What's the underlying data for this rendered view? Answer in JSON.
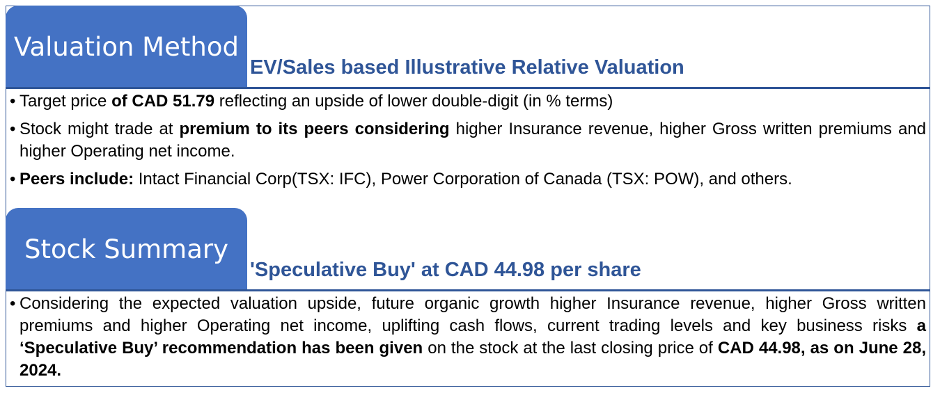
{
  "valuation": {
    "tab_title": "Valuation Method",
    "subtitle": "EV/Sales based Illustrative Relative Valuation",
    "bullets": [
      {
        "parts": [
          {
            "text": "Target price ",
            "bold": false
          },
          {
            "text": "of CAD 51.79",
            "bold": true
          },
          {
            "text": " reflecting an upside of lower double-digit (in % terms)",
            "bold": false
          }
        ]
      },
      {
        "parts": [
          {
            "text": "Stock might trade at ",
            "bold": false
          },
          {
            "text": "premium to its peers considering",
            "bold": true
          },
          {
            "text": " higher Insurance revenue, higher Gross written premiums and higher Operating net income.",
            "bold": false
          }
        ]
      },
      {
        "parts": [
          {
            "text": "Peers include:",
            "bold": true
          },
          {
            "text": " Intact Financial Corp(TSX: IFC), Power Corporation of Canada (TSX: POW), and others.",
            "bold": false
          }
        ]
      }
    ]
  },
  "summary": {
    "tab_title": "Stock Summary",
    "subtitle": "'Speculative Buy' at CAD 44.98 per share",
    "bullets": [
      {
        "parts": [
          {
            "text": "Considering the expected valuation upside, future organic growth higher Insurance revenue, higher Gross written premiums and higher Operating net income, uplifting cash flows, current trading levels and key business risks ",
            "bold": false
          },
          {
            "text": "a ‘Speculative Buy’ recommendation has been given",
            "bold": true
          },
          {
            "text": " on the stock at the last closing price of ",
            "bold": false
          },
          {
            "text": "CAD 44.98, as on June 28, 2024.",
            "bold": true
          }
        ]
      }
    ]
  },
  "bullet_glyph": "•",
  "colors": {
    "accent": "#4472c4",
    "heading_text": "#2f5597",
    "rule": "#2f5597"
  }
}
